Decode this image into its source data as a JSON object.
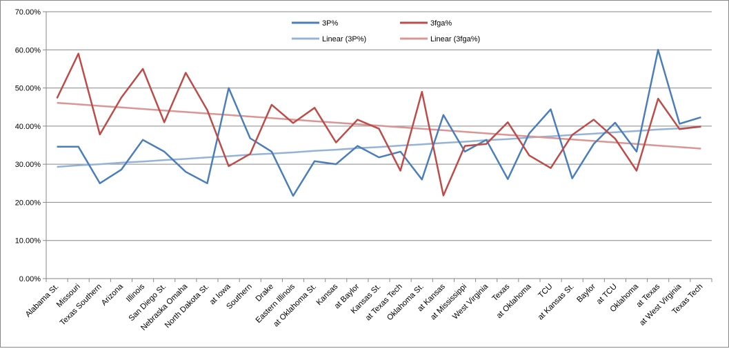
{
  "chart_data": {
    "type": "line",
    "categories": [
      "Alabama St.",
      "Missouri",
      "Texas Southern",
      "Arizona",
      "Illinois",
      "San Diego St.",
      "Nebraska Omaha",
      "North Dakota St.",
      "at Iowa",
      "Southern",
      "Drake",
      "Eastern Illinois",
      "at Oklahoma St.",
      "Kansas",
      "at Baylor",
      "Kansas St.",
      "at Texas Tech",
      "Oklahoma St.",
      "at Kansas",
      "at Mississippi",
      "West Virginia",
      "Texas",
      "at Oklahoma",
      "TCU",
      "at Kansas St.",
      "Baylor",
      "at TCU",
      "Oklahoma",
      "at Texas",
      "at West Virginia",
      "Texas Tech"
    ],
    "series": [
      {
        "name": "3P%",
        "color": "#4a7ebb",
        "values": [
          34.6,
          34.6,
          25.0,
          28.6,
          36.4,
          33.3,
          28.0,
          25.0,
          50.0,
          36.8,
          33.3,
          21.7,
          30.8,
          30.0,
          34.8,
          31.8,
          33.3,
          26.0,
          42.9,
          33.3,
          36.4,
          26.1,
          38.1,
          44.4,
          26.3,
          35.3,
          40.9,
          33.3,
          60.0,
          40.6,
          42.3
        ]
      },
      {
        "name": "3fga%",
        "color": "#be4b48",
        "values": [
          47.3,
          59.0,
          37.8,
          47.5,
          55.0,
          41.0,
          54.0,
          44.2,
          29.5,
          32.7,
          45.6,
          40.8,
          44.8,
          35.7,
          41.7,
          39.3,
          28.3,
          49.0,
          21.8,
          34.8,
          35.3,
          41.0,
          32.3,
          29.0,
          37.7,
          41.7,
          36.7,
          28.3,
          47.2,
          39.2,
          39.9
        ]
      },
      {
        "name": "Linear (3P%)",
        "color": "#95b3d7",
        "trendline": true,
        "values": [
          29.3,
          29.7,
          30.0,
          30.4,
          30.7,
          31.1,
          31.4,
          31.8,
          32.1,
          32.5,
          32.8,
          33.1,
          33.5,
          33.8,
          34.2,
          34.5,
          34.9,
          35.2,
          35.6,
          35.9,
          36.3,
          36.6,
          37.0,
          37.3,
          37.7,
          38.0,
          38.4,
          38.7,
          39.1,
          39.4,
          39.8
        ]
      },
      {
        "name": "Linear (3fga%)",
        "color": "#d99694",
        "trendline": true,
        "values": [
          46.1,
          45.7,
          45.3,
          44.9,
          44.5,
          44.1,
          43.7,
          43.3,
          42.9,
          42.5,
          42.1,
          41.7,
          41.3,
          40.9,
          40.5,
          40.1,
          39.7,
          39.3,
          38.9,
          38.5,
          38.1,
          37.7,
          37.3,
          36.9,
          36.5,
          36.1,
          35.7,
          35.3,
          34.9,
          34.5,
          34.1
        ]
      }
    ],
    "yticks": [
      "0.00%",
      "10.00%",
      "20.00%",
      "30.00%",
      "40.00%",
      "50.00%",
      "60.00%",
      "70.00%"
    ],
    "ylim": [
      0,
      70
    ],
    "grid": true,
    "legend_position": "top",
    "title": "",
    "xlabel": "",
    "ylabel": ""
  }
}
